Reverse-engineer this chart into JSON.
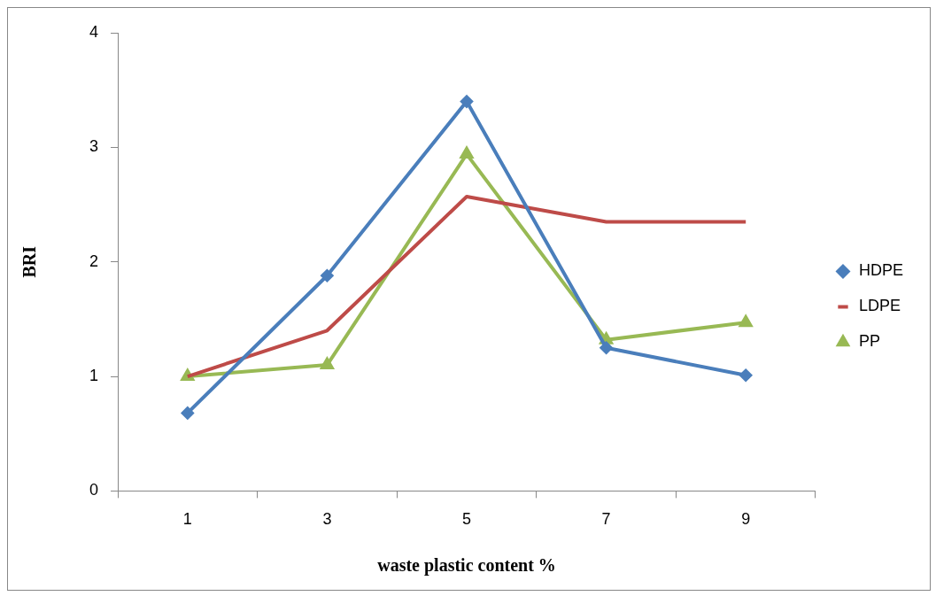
{
  "chart_data": {
    "type": "line",
    "xlabel": "waste plastic content %",
    "ylabel": "BRI",
    "categories": [
      "1",
      "3",
      "5",
      "7",
      "9"
    ],
    "ylim": [
      0,
      4
    ],
    "yticks": [
      0,
      1,
      2,
      3,
      4
    ],
    "grid": false,
    "legend": "right",
    "series": [
      {
        "name": "HDPE",
        "color": "#4a7ebb",
        "marker": "diamond",
        "values": [
          0.68,
          1.88,
          3.4,
          1.25,
          1.01
        ]
      },
      {
        "name": "LDPE",
        "color": "#be4b48",
        "marker": "none",
        "values": [
          1.0,
          1.4,
          2.57,
          2.35,
          2.35
        ]
      },
      {
        "name": "PP",
        "color": "#98b954",
        "marker": "triangle",
        "values": [
          1.0,
          1.1,
          2.94,
          1.32,
          1.47
        ]
      }
    ]
  }
}
